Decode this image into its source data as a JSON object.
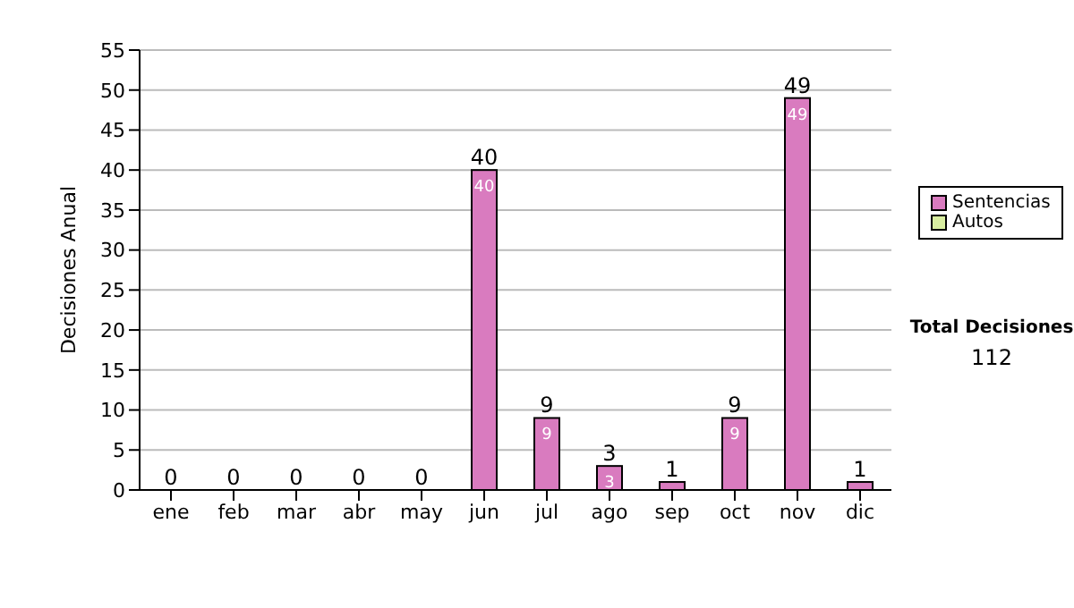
{
  "chart_data": {
    "type": "bar",
    "ylabel": "Decisiones Anual",
    "categories": [
      "ene",
      "feb",
      "mar",
      "abr",
      "may",
      "jun",
      "jul",
      "ago",
      "sep",
      "oct",
      "nov",
      "dic"
    ],
    "series": [
      {
        "name": "Sentencias",
        "color": "#d97bbf",
        "values": [
          0,
          0,
          0,
          0,
          0,
          40,
          9,
          3,
          1,
          9,
          49,
          1
        ],
        "value_labels": [
          null,
          null,
          null,
          null,
          null,
          "40",
          "9",
          "3",
          null,
          "9",
          "49",
          null
        ]
      },
      {
        "name": "Autos",
        "color": "#d8eea0",
        "values": [
          0,
          0,
          0,
          0,
          0,
          0,
          0,
          0,
          0,
          0,
          0,
          0
        ]
      }
    ],
    "stacked": true,
    "totals": [
      "0",
      "0",
      "0",
      "0",
      "0",
      "40",
      "9",
      "3",
      "1",
      "9",
      "49",
      "1"
    ],
    "ylim": [
      0,
      55
    ],
    "yticks": [
      0,
      5,
      10,
      15,
      20,
      25,
      30,
      35,
      40,
      45,
      50,
      55
    ],
    "grid": "y",
    "legend": "right",
    "annotations": [
      "Total Decisiones",
      "112"
    ]
  }
}
